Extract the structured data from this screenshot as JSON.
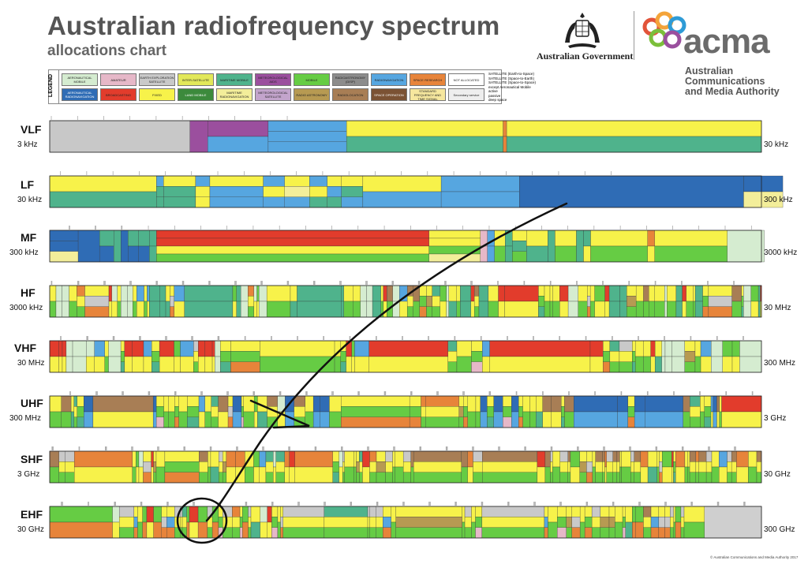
{
  "title": "Australian radiofrequency spectrum",
  "subtitle": "allocations chart",
  "gov_text": "Australian Government",
  "acma_word": "acma",
  "acma_name": [
    "Australian",
    "Communications",
    "and Media Authority"
  ],
  "legend_heading": "LEGEND",
  "legend": [
    {
      "label": "AERONAUTICAL MOBILE",
      "color": "#d5ecd0"
    },
    {
      "label": "AMATEUR",
      "color": "#e6b8c8"
    },
    {
      "label": "EARTH EXPLORATION SATELLITE",
      "color": "#c9c9c9"
    },
    {
      "label": "INTER-SATELLITE",
      "color": "#e2e85a"
    },
    {
      "label": "MARITIME MOBILE",
      "color": "#4fb38c"
    },
    {
      "label": "METEOROLOGICAL AIDS",
      "color": "#9b4f9e"
    },
    {
      "label": "MOBILE",
      "color": "#66cc44"
    },
    {
      "label": "RADIOASTRONOMY (DISP)",
      "color": "#8c8c8c"
    },
    {
      "label": "RADIONAVIGATION",
      "color": "#56a6e0"
    },
    {
      "label": "SPACE RESEARCH",
      "color": "#e7843a"
    },
    {
      "label": "NOT ALLOCATED",
      "color": "#ffffff"
    },
    {
      "label": "AERONAUTICAL RADIONAVIGATION",
      "color": "#2f6cb5"
    },
    {
      "label": "BROADCASTING",
      "color": "#e23c2c"
    },
    {
      "label": "FIXED",
      "color": "#f7f24a"
    },
    {
      "label": "LAND MOBILE",
      "color": "#3c8a3c"
    },
    {
      "label": "MARITIME RADIONAVIGATION",
      "color": "#f3ee9a"
    },
    {
      "label": "METEOROLOGICAL SATELLITE",
      "color": "#c3a4cc"
    },
    {
      "label": "RADIO ASTRONOMY",
      "color": "#b79a52"
    },
    {
      "label": "RADIOLOCATION",
      "color": "#a87e55"
    },
    {
      "label": "SPACE OPERATION",
      "color": "#7b5234"
    },
    {
      "label": "STANDARD FREQUENCY AND TIME SIGNAL",
      "color": "#f6e79e"
    },
    {
      "label": "Secondary service",
      "color": "#eeeeee"
    }
  ],
  "legend_symbols": [
    "SATELLITE (Earth-to-Space)",
    "SATELLITE (Space-to-Earth)",
    "SATELLITE (Space-to-Space)",
    "except Aeronautical Mobile",
    "active",
    "passive",
    "deep space"
  ],
  "bands": [
    {
      "name": "VLF",
      "low": "3 kHz",
      "high": "30 kHz"
    },
    {
      "name": "LF",
      "low": "30 kHz",
      "high": "300 kHz"
    },
    {
      "name": "MF",
      "low": "300 kHz",
      "high": "3000 kHz"
    },
    {
      "name": "HF",
      "low": "3000 kHz",
      "high": "30 MHz"
    },
    {
      "name": "VHF",
      "low": "30 MHz",
      "high": "300 MHz"
    },
    {
      "name": "UHF",
      "low": "300 MHz",
      "high": "3 GHz"
    },
    {
      "name": "SHF",
      "low": "3 GHz",
      "high": "30 GHz"
    },
    {
      "name": "EHF",
      "low": "30 GHz",
      "high": "300 GHz"
    }
  ],
  "copyright": "© Australian Communications and Media Authority 2017"
}
